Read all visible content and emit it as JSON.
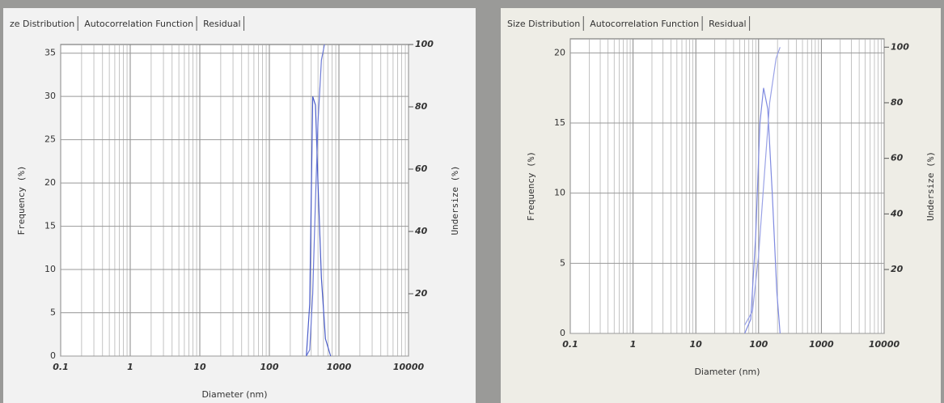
{
  "chart_data": [
    {
      "type": "line",
      "tabs": [
        "ze Distribution",
        "Autocorrelation Function",
        "Residual"
      ],
      "xlabel": "Diameter (nm)",
      "ylabel": "Frequency (%)",
      "y2label": "Undersize (%)",
      "xscale": "log",
      "xlim": [
        0.1,
        10000
      ],
      "xticks": [
        0.1,
        1,
        10,
        100,
        1000,
        10000
      ],
      "ylim": [
        0,
        36
      ],
      "yticks": [
        0,
        5,
        10,
        15,
        20,
        25,
        30,
        35
      ],
      "y2lim": [
        0,
        100
      ],
      "y2ticks": [
        20,
        40,
        60,
        80,
        100
      ],
      "grid": true,
      "series": [
        {
          "color": "#4a5cc8",
          "x": [
            340,
            380,
            420,
            460,
            500,
            560,
            640,
            760
          ],
          "values": [
            0,
            6,
            30,
            29,
            20,
            9,
            2,
            0
          ]
        },
        {
          "color": "#6c7ad6",
          "axis": "y2",
          "x": [
            340,
            380,
            420,
            460,
            500,
            560,
            620
          ],
          "values": [
            0,
            2,
            20,
            50,
            75,
            95,
            100
          ]
        }
      ]
    },
    {
      "type": "line",
      "tabs": [
        "Size Distribution",
        "Autocorrelation Function",
        "Residual"
      ],
      "xlabel": "Diameter (nm)",
      "ylabel": "Frequency (%)",
      "y2label": "Undersize (%)",
      "xscale": "log",
      "xlim": [
        0.1,
        10000
      ],
      "xticks": [
        0.1,
        1,
        10,
        100,
        1000,
        10000
      ],
      "ylim": [
        0,
        21
      ],
      "yticks": [
        0,
        5,
        10,
        15,
        20
      ],
      "y2lim": [
        -3,
        103
      ],
      "y2ticks": [
        20,
        40,
        60,
        80,
        100
      ],
      "grid": true,
      "series": [
        {
          "color": "#7f8ae0",
          "x": [
            60,
            75,
            90,
            105,
            120,
            140,
            165,
            195,
            220
          ],
          "values": [
            0,
            1,
            7,
            15,
            17.5,
            16,
            10,
            3,
            0
          ]
        },
        {
          "color": "#9aa2e6",
          "axis": "y2",
          "x": [
            60,
            80,
            100,
            120,
            150,
            190,
            220
          ],
          "values": [
            0,
            5,
            25,
            50,
            80,
            96,
            100
          ]
        }
      ]
    }
  ]
}
